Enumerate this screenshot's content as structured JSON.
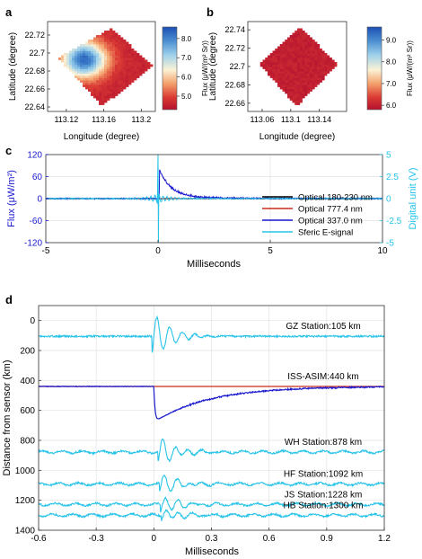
{
  "panels": {
    "a": "a",
    "b": "b",
    "c": "c",
    "d": "d"
  },
  "colors": {
    "black": "#000000",
    "red": "#cc2a1c",
    "blue": "#1a1ad0",
    "cyan": "#27c3e8",
    "axis_blue": "#1a1ad0",
    "axis_cyan": "#27c3e8",
    "map_red": "#c42a36",
    "grid": "#e2e2e2"
  },
  "chart_data": [
    {
      "id": "a",
      "type": "heatmap",
      "xlabel": "Longitude (degree)",
      "ylabel": "Latitude (degree)",
      "xticks": [
        "113.12",
        "113.16",
        "113.2"
      ],
      "yticks": [
        "22.64",
        "22.66",
        "22.68",
        "22.7",
        "22.72"
      ],
      "xlim": [
        113.1,
        113.215
      ],
      "ylim": [
        22.635,
        22.735
      ],
      "colorbar": {
        "label": "Flux (μW/(m² Sr))",
        "ticks": [
          "5.0",
          "6.0",
          "7.0",
          "8.0"
        ],
        "range": [
          4.3,
          8.6
        ]
      },
      "corners": [
        [
          113.111,
          22.695
        ],
        [
          113.168,
          22.728
        ],
        [
          113.212,
          22.685
        ],
        [
          113.158,
          22.641
        ]
      ],
      "hotspot": {
        "lon": 113.139,
        "lat": 22.693,
        "peak": 8.3,
        "base": 4.6
      }
    },
    {
      "id": "b",
      "type": "heatmap",
      "xlabel": "Longitude (degree)",
      "ylabel": "Latitude (degree)",
      "xticks": [
        "113.06",
        "113.1",
        "113.14"
      ],
      "yticks": [
        "22.66",
        "22.68",
        "22.7",
        "22.72",
        "22.74"
      ],
      "xlim": [
        113.04,
        113.178
      ],
      "ylim": [
        22.651,
        22.749
      ],
      "colorbar": {
        "label": "Flux (μW/(m² Sr))",
        "ticks": [
          "6.0",
          "7.0",
          "8.0",
          "9.0"
        ],
        "range": [
          5.8,
          9.6
        ]
      },
      "corners": [
        [
          113.056,
          22.703
        ],
        [
          113.114,
          22.743
        ],
        [
          113.165,
          22.702
        ],
        [
          113.108,
          22.657
        ]
      ],
      "base": 6.0
    },
    {
      "id": "c",
      "type": "line",
      "xlabel": "Milliseconds",
      "ylabel_left": "Flux (μW/m²)",
      "ylabel_right": "Digital unit (V)",
      "xlim": [
        -5,
        10
      ],
      "ylim_left": [
        -120,
        120
      ],
      "ylim_right": [
        -5,
        5
      ],
      "xticks": [
        "-5",
        "0",
        "5",
        "10"
      ],
      "yticks_left": [
        "120",
        "60",
        "0",
        "-60",
        "-120"
      ],
      "yticks_right": [
        "5",
        "2.5",
        "0",
        "-2.5",
        "-5"
      ],
      "legend_position": "lower-right",
      "series": [
        {
          "name": "Optical 180-230 nm",
          "color": "black",
          "baseline": 0,
          "noise": 1.5
        },
        {
          "name": "Optical 777.4 nm",
          "color": "red",
          "baseline": 0,
          "noise": 1.0
        },
        {
          "name": "Optical 337.0 nm",
          "color": "blue",
          "peak_ms": 0.05,
          "peak": 75,
          "decay_ms": 0.5
        },
        {
          "name": "Sferic E-signal",
          "color": "cyan",
          "axis": "right",
          "spike_max": 5,
          "spike_min": -5
        }
      ]
    },
    {
      "id": "d",
      "type": "line",
      "xlabel": "Milliseconds",
      "ylabel": "Distance from sensor (km)",
      "xlim": [
        -0.6,
        1.2
      ],
      "ylim": [
        1400,
        -100
      ],
      "xticks": [
        "-0.6",
        "-0.3",
        "0",
        "0.3",
        "0.6",
        "0.9",
        "1.2"
      ],
      "yticks": [
        "0",
        "200",
        "400",
        "600",
        "800",
        "1000",
        "1200",
        "1400"
      ],
      "series": [
        {
          "name": "GZ Station:105 km",
          "distance_km": 105,
          "color": "cyan",
          "amp": 150
        },
        {
          "name": "ISS-ASIM:440 km",
          "distance_km": 440,
          "color": "blue",
          "dip_km": 680
        },
        {
          "name": "WH Station:878 km",
          "distance_km": 878,
          "color": "cyan",
          "amp": 90
        },
        {
          "name": "HF Station:1092 km",
          "distance_km": 1092,
          "color": "cyan",
          "amp": 70
        },
        {
          "name": "JS Station:1228 km",
          "distance_km": 1228,
          "color": "cyan",
          "amp": 60
        },
        {
          "name": "HB Station:1300 km",
          "distance_km": 1300,
          "color": "cyan",
          "amp": 45
        }
      ]
    }
  ]
}
